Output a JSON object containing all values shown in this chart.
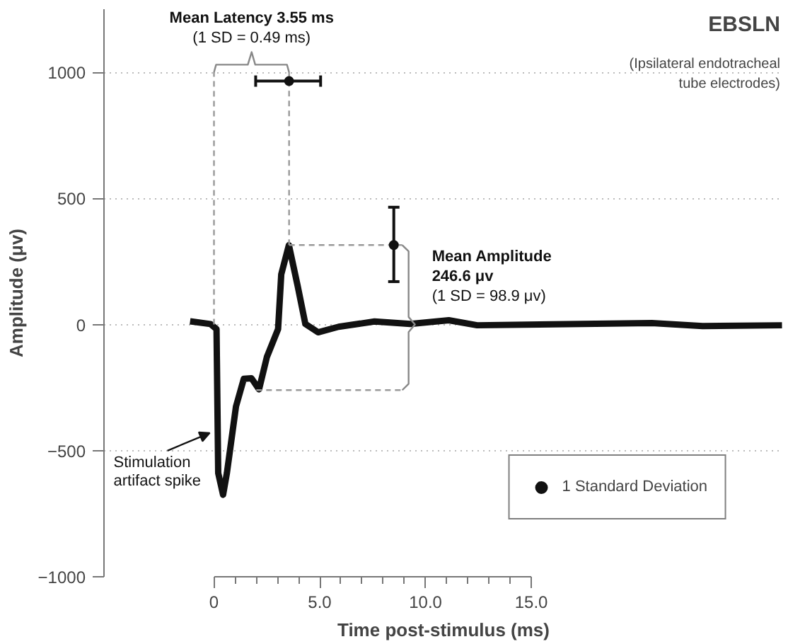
{
  "chart_data": {
    "type": "line",
    "title": "EBSLN",
    "subtitle": "(Ipsilateral endotracheal tube electrodes)",
    "xlabel": "Time post-stimulus (ms)",
    "ylabel": "Amplitude (μv)",
    "xlim": [
      -5.2,
      26.9
    ],
    "ylim": [
      -1000,
      1250
    ],
    "xticks": [
      0,
      {
        "value": 1,
        "label": null
      },
      {
        "value": 2,
        "label": null
      },
      {
        "value": 3,
        "label": null
      },
      {
        "value": 4,
        "label": null
      },
      {
        "value": 5,
        "label": "5.0"
      },
      {
        "value": 6,
        "label": null
      },
      {
        "value": 7,
        "label": null
      },
      {
        "value": 8,
        "label": null
      },
      {
        "value": 9,
        "label": null
      },
      {
        "value": 10,
        "label": "10.0"
      },
      {
        "value": 11,
        "label": null
      },
      {
        "value": 12,
        "label": null
      },
      {
        "value": 13,
        "label": null
      },
      {
        "value": 14,
        "label": null
      },
      {
        "value": 15,
        "label": "15.0"
      }
    ],
    "yticks": [
      -1000,
      -500,
      0,
      500,
      1000
    ],
    "grid": "y",
    "legend": "bottom right",
    "series": [
      {
        "color": "#111111",
        "x": [
          -1.13,
          -0.17,
          0.12,
          0.2,
          0.43,
          0.61,
          1.04,
          1.41,
          1.77,
          2.13,
          2.5,
          3.03,
          3.18,
          3.54,
          3.95,
          4.32,
          4.92,
          5.89,
          7.59,
          9.28,
          11.1,
          12.44,
          20.7,
          23.1,
          26.85
        ],
        "values": [
          13,
          2,
          -18,
          -589,
          -675,
          -589,
          -325,
          -215,
          -213,
          -257,
          -129,
          -18,
          199,
          315,
          155,
          2,
          -31,
          -9,
          12,
          2,
          17,
          -3,
          6,
          -6,
          -3
        ]
      },
      {
        "color": "#999999",
        "line_style": "dashed",
        "x": [
          0,
          0
        ],
        "values": [
          0,
          1000
        ]
      },
      {
        "color": "#999999",
        "line_style": "dashed",
        "x": [
          3.55,
          3.55
        ],
        "values": [
          315,
          1000
        ]
      },
      {
        "color": "#999999",
        "line_style": "dashed",
        "x": [
          3.55,
          8.9
        ],
        "values": [
          315,
          315
        ]
      },
      {
        "color": "#999999",
        "line_style": "dashed",
        "x": [
          2.0,
          8.9
        ],
        "values": [
          -260,
          -260
        ]
      },
      {
        "color": "#888888",
        "x": [
          0,
          0.1,
          1.6,
          1.78,
          1.95,
          3.45,
          3.55
        ],
        "values": [
          1000,
          1030,
          1030,
          1080,
          1030,
          1030,
          1000
        ]
      },
      {
        "color": "#888888",
        "x": [
          8.9,
          9.2,
          9.2,
          9.5,
          9.2,
          9.2,
          8.9
        ],
        "values": [
          315,
          290,
          30,
          0,
          -30,
          -235,
          -260
        ]
      },
      {
        "type": "scatter",
        "name": "1 Standard Deviation",
        "color": "#111111",
        "marker": "circle",
        "x": [
          3.55,
          8.5
        ],
        "values": [
          965,
          315
        ],
        "errors": [
          null,
          [
            170,
            465
          ]
        ],
        "xerrors": [
          [
            1.97,
            5.04
          ],
          null
        ]
      }
    ],
    "annotations": [
      {
        "text": "Mean Latency 3.55 ms\n(1 SD = 0.49 ms)",
        "x": 1.78,
        "y": 1080
      },
      {
        "text": "Mean Amplitude\n246.6 μv\n(1 SD = 98.9 μv)",
        "x": 9.5,
        "y": 0
      },
      {
        "text": "Stimulation artifact spike",
        "x": -0.2,
        "y": -430
      }
    ]
  }
}
